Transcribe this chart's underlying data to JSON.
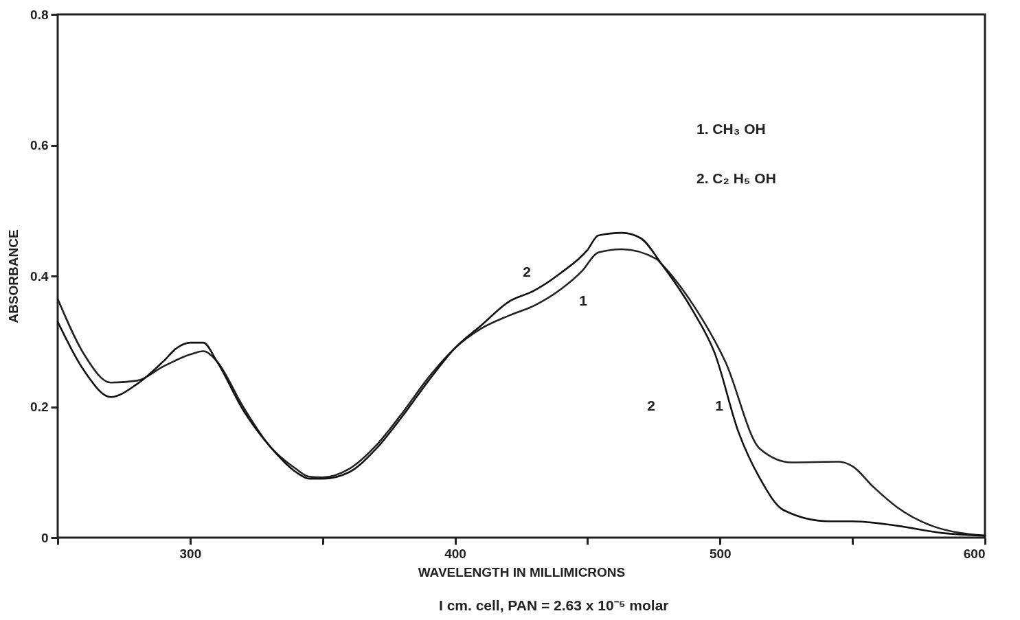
{
  "chart_data": {
    "type": "line",
    "xlabel": "WAVELENGTH   IN   MILLIMICRONS",
    "ylabel": "ABSORBANCE",
    "xlim": [
      250,
      600
    ],
    "xticks": [
      {
        "value": 250,
        "label": null
      },
      300,
      {
        "value": 350,
        "label": null
      },
      400,
      {
        "value": 450,
        "label": null
      },
      500,
      {
        "value": 550,
        "label": null
      },
      600
    ],
    "ylim": [
      0,
      0.8
    ],
    "yticks": [
      0,
      0.2,
      0.4,
      0.6,
      0.8
    ],
    "grid": false,
    "legend": false,
    "marker": "none",
    "line_style": "solid",
    "series": [
      {
        "color": "#222222",
        "x": [
          250,
          260,
          270,
          280,
          290,
          300,
          305,
          310,
          320,
          330,
          340,
          345,
          350,
          360,
          370,
          380,
          390,
          400,
          410,
          420,
          430,
          440,
          448,
          454,
          463,
          476,
          478,
          490,
          502,
          515,
          527,
          545,
          550,
          558,
          567,
          580,
          600
        ],
        "values": [
          0.365,
          0.28,
          0.237,
          0.24,
          0.262,
          0.28,
          0.285,
          0.27,
          0.2,
          0.14,
          0.105,
          0.093,
          0.092,
          0.105,
          0.14,
          0.19,
          0.245,
          0.29,
          0.32,
          0.339,
          0.355,
          0.38,
          0.408,
          0.436,
          0.441,
          0.426,
          0.418,
          0.355,
          0.269,
          0.136,
          0.115,
          0.116,
          0.109,
          0.077,
          0.046,
          0.018,
          0.003
        ]
      },
      {
        "color": "#111111",
        "x": [
          250,
          260,
          270,
          280,
          290,
          295,
          300,
          305,
          310,
          320,
          330,
          340,
          345,
          350,
          360,
          370,
          380,
          390,
          400,
          410,
          420,
          430,
          440,
          450,
          454,
          463,
          470,
          478,
          490,
          498,
          507,
          515,
          524,
          541,
          550,
          567,
          584,
          600
        ],
        "values": [
          0.33,
          0.255,
          0.215,
          0.235,
          0.27,
          0.29,
          0.298,
          0.298,
          0.27,
          0.195,
          0.14,
          0.1,
          0.09,
          0.09,
          0.1,
          0.135,
          0.185,
          0.24,
          0.29,
          0.325,
          0.36,
          0.378,
          0.405,
          0.44,
          0.462,
          0.466,
          0.458,
          0.418,
          0.345,
          0.282,
          0.161,
          0.091,
          0.042,
          0.025,
          0.025,
          0.018,
          0.007,
          0.003
        ]
      }
    ],
    "annotations": [
      "2",
      "1",
      "2",
      "1",
      "1. CH₃ OH",
      "2. C₂ H₅ OH",
      "I cm. cell, PAN = 2.63 x 10⁻⁵ molar"
    ]
  }
}
